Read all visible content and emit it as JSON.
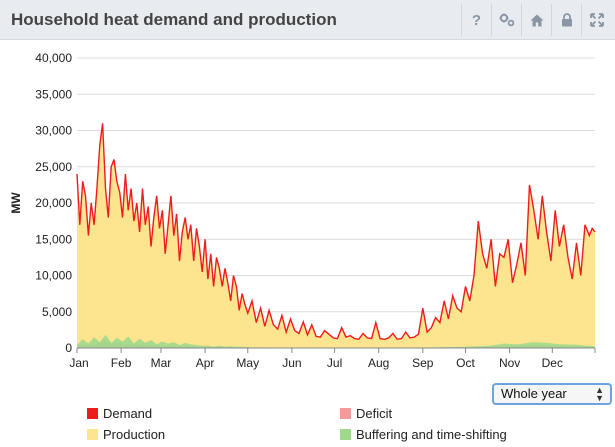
{
  "header": {
    "title": "Household heat demand and production",
    "tools": [
      {
        "icon": "help-icon",
        "glyph": "?"
      },
      {
        "icon": "settings-icon",
        "glyph": "gears"
      },
      {
        "icon": "home-icon",
        "glyph": "home"
      },
      {
        "icon": "lock-icon",
        "glyph": "lock"
      },
      {
        "icon": "expand-icon",
        "glyph": "expand"
      }
    ]
  },
  "period_select": {
    "value": "Whole year",
    "options": [
      "Whole year"
    ]
  },
  "legend": [
    {
      "name": "Demand",
      "color": "#ee1c1c"
    },
    {
      "name": "Deficit",
      "color": "#f49a9a"
    },
    {
      "name": "Production",
      "color": "#fde48f"
    },
    {
      "name": "Buffering and time-shifting",
      "color": "#9ed98c"
    }
  ],
  "chart_data": {
    "type": "area",
    "title": "",
    "ylabel": "MW",
    "xlabel": "",
    "ylim": [
      0,
      40000
    ],
    "yticks": [
      0,
      5000,
      10000,
      15000,
      20000,
      25000,
      30000,
      35000,
      40000
    ],
    "ytick_labels": [
      "0",
      "5,000",
      "10,000",
      "15,000",
      "20,000",
      "25,000",
      "30,000",
      "35,000",
      "40,000"
    ],
    "x_unit": "day of year",
    "xlim": [
      1,
      365
    ],
    "month_ticks": [
      {
        "label": "Jan",
        "day": 1
      },
      {
        "label": "Feb",
        "day": 32
      },
      {
        "label": "Mar",
        "day": 60
      },
      {
        "label": "Apr",
        "day": 91
      },
      {
        "label": "May",
        "day": 121
      },
      {
        "label": "Jun",
        "day": 152
      },
      {
        "label": "Jul",
        "day": 182
      },
      {
        "label": "Aug",
        "day": 213
      },
      {
        "label": "Sep",
        "day": 244
      },
      {
        "label": "Oct",
        "day": 274
      },
      {
        "label": "Nov",
        "day": 305
      },
      {
        "label": "Dec",
        "day": 335
      }
    ],
    "grid": true,
    "legend_position": "bottom",
    "series": [
      {
        "name": "Demand",
        "color": "#ee1c1c",
        "x": [
          1,
          3,
          5,
          7,
          9,
          11,
          13,
          15,
          17,
          19,
          21,
          23,
          25,
          27,
          29,
          31,
          33,
          35,
          37,
          39,
          41,
          43,
          45,
          47,
          49,
          51,
          53,
          55,
          57,
          59,
          61,
          63,
          65,
          67,
          69,
          71,
          73,
          75,
          77,
          79,
          81,
          83,
          85,
          87,
          89,
          91,
          93,
          95,
          97,
          99,
          101,
          103,
          105,
          107,
          109,
          111,
          113,
          115,
          117,
          119,
          121,
          124,
          127,
          130,
          133,
          136,
          139,
          142,
          145,
          148,
          151,
          154,
          157,
          160,
          163,
          166,
          169,
          172,
          175,
          178,
          181,
          184,
          187,
          190,
          193,
          196,
          199,
          202,
          205,
          208,
          211,
          214,
          217,
          220,
          223,
          226,
          229,
          232,
          235,
          238,
          241,
          244,
          247,
          250,
          253,
          256,
          259,
          262,
          265,
          268,
          271,
          274,
          277,
          280,
          283,
          286,
          289,
          292,
          295,
          298,
          301,
          304,
          307,
          310,
          313,
          316,
          319,
          322,
          325,
          328,
          331,
          334,
          337,
          340,
          343,
          346,
          349,
          352,
          355,
          358,
          361,
          363,
          365
        ],
        "y": [
          24000,
          17000,
          23000,
          21000,
          15500,
          20000,
          17000,
          22000,
          28000,
          31000,
          22000,
          18000,
          25000,
          26000,
          23000,
          21500,
          18000,
          24000,
          19000,
          22000,
          17500,
          20000,
          16000,
          22000,
          17000,
          19500,
          14000,
          18000,
          21000,
          16500,
          19000,
          13000,
          17000,
          21000,
          15500,
          18500,
          12000,
          16000,
          18000,
          15000,
          17000,
          12000,
          16500,
          14000,
          10500,
          15000,
          9500,
          13000,
          8500,
          12500,
          11000,
          8500,
          11000,
          9000,
          6500,
          10000,
          8500,
          5200,
          7500,
          6000,
          4800,
          6500,
          3500,
          5500,
          3000,
          5200,
          3200,
          2600,
          4500,
          2200,
          4000,
          2400,
          2000,
          3600,
          1800,
          3200,
          1600,
          1500,
          2400,
          1900,
          1400,
          1300,
          2800,
          1500,
          1700,
          1300,
          1200,
          2000,
          1400,
          1300,
          3500,
          1300,
          1200,
          1400,
          2000,
          1200,
          1300,
          2200,
          1400,
          1500,
          1900,
          5500,
          2200,
          2800,
          4200,
          3500,
          6500,
          4000,
          7200,
          5500,
          5000,
          8500,
          6500,
          10000,
          17500,
          13000,
          11000,
          15000,
          8500,
          13000,
          12500,
          15000,
          9000,
          11500,
          14500,
          10000,
          22500,
          19000,
          15000,
          21000,
          16000,
          12000,
          19000,
          14000,
          17000,
          12500,
          9500,
          14500,
          10000,
          17000,
          15500,
          16500,
          16000
        ]
      },
      {
        "name": "Production",
        "color": "#fde48f",
        "x": [
          1,
          365
        ],
        "y": [
          24000,
          16000
        ],
        "note_same_as_demand": true
      },
      {
        "name": "Buffering and time-shifting",
        "color": "#9ed98c",
        "x": [
          1,
          5,
          9,
          13,
          17,
          21,
          25,
          29,
          33,
          37,
          41,
          45,
          49,
          53,
          57,
          61,
          65,
          69,
          73,
          77,
          81,
          85,
          89,
          93,
          97,
          101,
          105,
          109,
          113,
          117,
          121,
          151,
          181,
          211,
          241,
          271,
          281,
          291,
          301,
          311,
          321,
          331,
          341,
          351,
          361,
          365
        ],
        "y": [
          400,
          1200,
          600,
          1500,
          800,
          1800,
          700,
          1400,
          900,
          1600,
          600,
          1300,
          700,
          1100,
          500,
          900,
          600,
          800,
          400,
          700,
          500,
          400,
          300,
          350,
          200,
          300,
          200,
          250,
          150,
          200,
          100,
          60,
          40,
          40,
          60,
          150,
          250,
          300,
          600,
          500,
          800,
          700,
          500,
          450,
          300,
          250
        ]
      },
      {
        "name": "Deficit",
        "color": "#f49a9a",
        "x": [
          1,
          9,
          13,
          17,
          21,
          25,
          29,
          33,
          41,
          49,
          57,
          65,
          73,
          81,
          89,
          97,
          105,
          113,
          121,
          151,
          181,
          211,
          241,
          271,
          291,
          301,
          311,
          321,
          331,
          341,
          351,
          365
        ],
        "y": [
          300,
          600,
          400,
          800,
          900,
          500,
          700,
          600,
          500,
          400,
          350,
          300,
          250,
          200,
          150,
          120,
          100,
          80,
          60,
          30,
          20,
          20,
          30,
          80,
          150,
          250,
          300,
          400,
          350,
          250,
          200,
          150
        ]
      }
    ]
  }
}
